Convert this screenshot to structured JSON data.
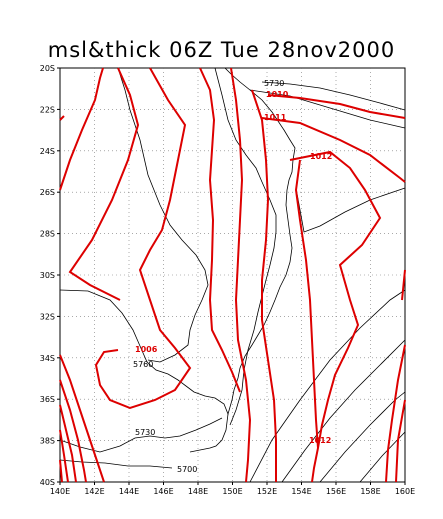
{
  "title": "msl&thick 06Z Tue 28nov2000",
  "map": {
    "lon_range": [
      140,
      160
    ],
    "lat_range": [
      -40,
      -20
    ],
    "grid": "dotted",
    "x_ticks": [
      "140E",
      "142E",
      "144E",
      "146E",
      "148E",
      "150E",
      "152E",
      "154E",
      "156E",
      "158E",
      "160E"
    ],
    "y_ticks": [
      "20S",
      "22S",
      "24S",
      "26S",
      "28S",
      "30S",
      "32S",
      "34S",
      "36S",
      "38S",
      "40S"
    ]
  },
  "colors": {
    "pressure": "#dd0000",
    "thickness": "#000000",
    "coast": "#000000"
  },
  "contour_labels": [
    {
      "text": "5730",
      "kind": "thickness"
    },
    {
      "text": "1010",
      "kind": "pressure"
    },
    {
      "text": "1011",
      "kind": "pressure"
    },
    {
      "text": "1012",
      "kind": "pressure"
    },
    {
      "text": "1006",
      "kind": "pressure"
    },
    {
      "text": "5760",
      "kind": "thickness"
    },
    {
      "text": "5730",
      "kind": "thickness"
    },
    {
      "text": "1012",
      "kind": "pressure"
    },
    {
      "text": "5700",
      "kind": "thickness"
    }
  ]
}
